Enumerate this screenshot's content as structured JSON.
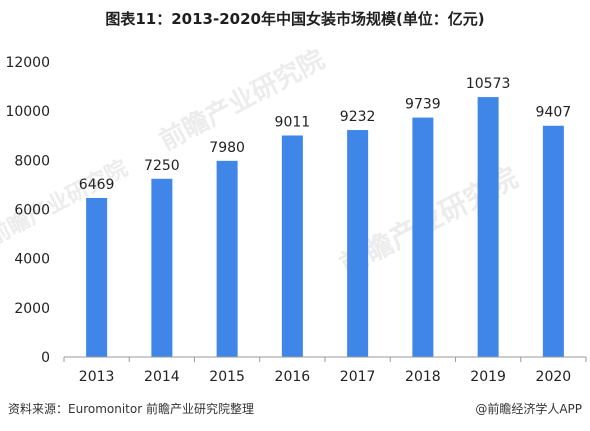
{
  "header": {
    "title": "图表11：2013-2020年中国女装市场规模(单位：亿元)"
  },
  "footer": {
    "source": "资料来源：Euromonitor 前瞻产业研究院整理",
    "credit": "@前瞻经济学人APP"
  },
  "watermarks": [
    "前瞻产业研究院",
    "前瞻产业研究院",
    "前瞻产业研究院"
  ],
  "colors": {
    "bar": "#3f86e8",
    "axis": "#9a9a9a"
  },
  "chart_data": {
    "type": "bar",
    "categories": [
      "2013",
      "2014",
      "2015",
      "2016",
      "2017",
      "2018",
      "2019",
      "2020"
    ],
    "values": [
      6469,
      7250,
      7980,
      9011,
      9232,
      9739,
      10573,
      9407
    ],
    "yticks": [
      0,
      2000,
      4000,
      6000,
      8000,
      10000,
      12000
    ],
    "ylim": [
      0,
      12000
    ],
    "grid": false,
    "legend": "none"
  }
}
